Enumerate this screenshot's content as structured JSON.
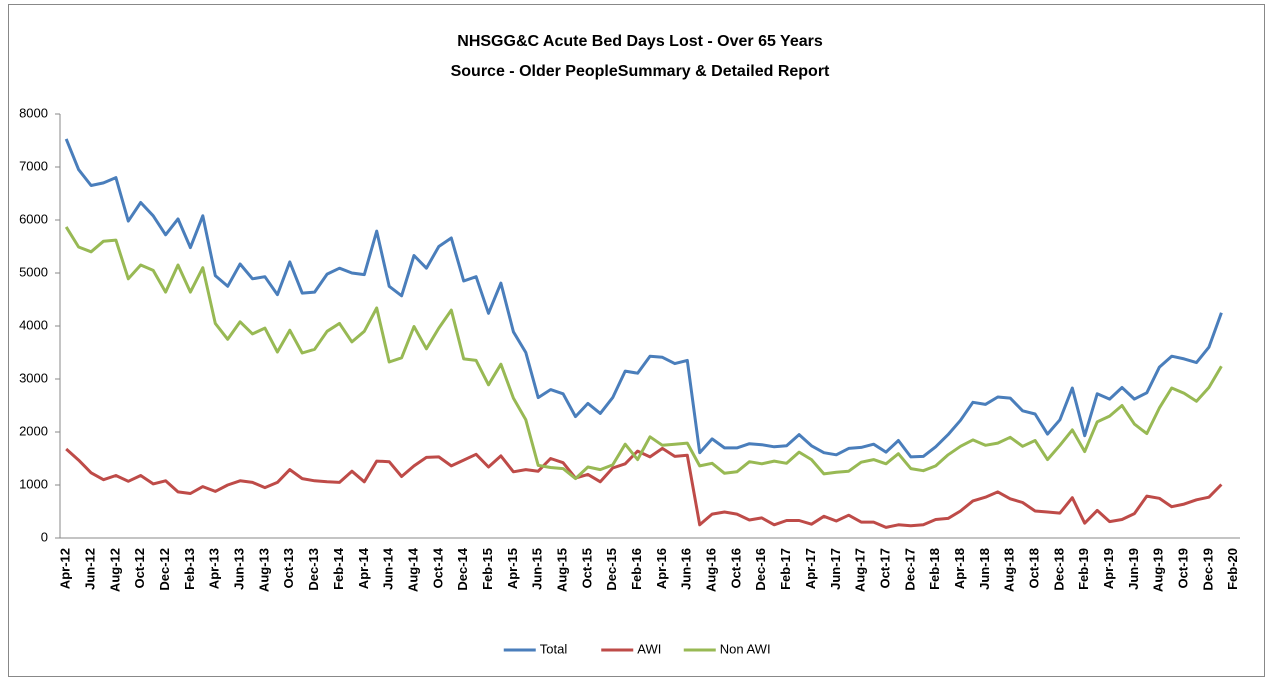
{
  "chart_data": {
    "type": "line",
    "title": "NHSGG&C Acute Bed Days Lost - Over 65 Years",
    "subtitle": "Source - Older PeopleSummary & Detailed Report",
    "categories": [
      "Apr-12",
      null,
      "Jun-12",
      null,
      "Aug-12",
      null,
      "Oct-12",
      null,
      "Dec-12",
      null,
      "Feb-13",
      null,
      "Apr-13",
      null,
      "Jun-13",
      null,
      "Aug-13",
      null,
      "Oct-13",
      null,
      "Dec-13",
      null,
      "Feb-14",
      null,
      "Apr-14",
      null,
      "Jun-14",
      null,
      "Aug-14",
      null,
      "Oct-14",
      null,
      "Dec-14",
      null,
      "Feb-15",
      null,
      "Apr-15",
      null,
      "Jun-15",
      null,
      "Aug-15",
      null,
      "Oct-15",
      null,
      "Dec-15",
      null,
      "Feb-16",
      null,
      "Apr-16",
      null,
      "Jun-16",
      null,
      "Aug-16",
      null,
      "Oct-16",
      null,
      "Dec-16",
      null,
      "Feb-17",
      null,
      "Apr-17",
      null,
      "Jun-17",
      null,
      "Aug-17",
      null,
      "Oct-17",
      null,
      "Dec-17",
      null,
      "Feb-18",
      null,
      "Apr-18",
      null,
      "Jun-18",
      null,
      "Aug-18",
      null,
      "Oct-18",
      null,
      "Dec-18",
      null,
      "Feb-19",
      null,
      "Apr-19",
      null,
      "Jun-19",
      null,
      "Aug-19",
      null,
      "Oct-19",
      null,
      "Dec-19",
      null,
      "Feb-20"
    ],
    "series": [
      {
        "name": "Total",
        "color": "#4a7ebb",
        "values": [
          7530,
          6950,
          6650,
          6700,
          6800,
          5980,
          6330,
          6080,
          5720,
          6020,
          5480,
          6080,
          4950,
          4750,
          5170,
          4890,
          4930,
          4590,
          5210,
          4620,
          4640,
          4980,
          5090,
          5000,
          4970,
          5790,
          4750,
          4570,
          5330,
          5090,
          5500,
          5660,
          4850,
          4930,
          4240,
          4810,
          3890,
          3500,
          2650,
          2800,
          2720,
          2290,
          2540,
          2350,
          2650,
          3150,
          3110,
          3430,
          3410,
          3290,
          3350,
          1610,
          1870,
          1700,
          1700,
          1780,
          1760,
          1720,
          1740,
          1950,
          1740,
          1610,
          1570,
          1690,
          1710,
          1770,
          1620,
          1840,
          1530,
          1540,
          1720,
          1950,
          2220,
          2560,
          2520,
          2660,
          2640,
          2400,
          2340,
          1960,
          2230,
          2830,
          1930,
          2720,
          2620,
          2840,
          2620,
          2740,
          3220,
          3430,
          3380,
          3310,
          3600,
          4250,
          null
        ]
      },
      {
        "name": "AWI",
        "color": "#be4b48",
        "values": [
          1680,
          1470,
          1230,
          1100,
          1180,
          1070,
          1180,
          1020,
          1080,
          870,
          840,
          970,
          880,
          1000,
          1080,
          1050,
          950,
          1050,
          1290,
          1120,
          1080,
          1060,
          1050,
          1260,
          1060,
          1450,
          1440,
          1160,
          1360,
          1520,
          1530,
          1360,
          1470,
          1580,
          1340,
          1550,
          1250,
          1290,
          1260,
          1500,
          1420,
          1130,
          1200,
          1060,
          1320,
          1400,
          1640,
          1530,
          1690,
          1540,
          1560,
          250,
          450,
          490,
          450,
          340,
          380,
          250,
          330,
          330,
          260,
          410,
          320,
          430,
          300,
          300,
          200,
          250,
          230,
          250,
          350,
          370,
          510,
          700,
          770,
          870,
          740,
          670,
          510,
          490,
          470,
          760,
          280,
          520,
          310,
          350,
          460,
          790,
          750,
          590,
          640,
          720,
          770,
          1010,
          null
        ]
      },
      {
        "name": "Non AWI",
        "color": "#98b954",
        "values": [
          5870,
          5490,
          5400,
          5600,
          5620,
          4890,
          5150,
          5050,
          4640,
          5150,
          4640,
          5100,
          4050,
          3750,
          4080,
          3850,
          3960,
          3510,
          3920,
          3490,
          3560,
          3900,
          4050,
          3700,
          3900,
          4340,
          3320,
          3400,
          3990,
          3570,
          3960,
          4300,
          3380,
          3350,
          2890,
          3280,
          2640,
          2230,
          1370,
          1330,
          1310,
          1120,
          1340,
          1290,
          1380,
          1770,
          1480,
          1910,
          1750,
          1770,
          1790,
          1360,
          1410,
          1220,
          1250,
          1440,
          1400,
          1450,
          1410,
          1620,
          1480,
          1210,
          1240,
          1260,
          1430,
          1480,
          1400,
          1590,
          1310,
          1270,
          1360,
          1570,
          1730,
          1850,
          1750,
          1790,
          1900,
          1730,
          1840,
          1480,
          1750,
          2040,
          1630,
          2190,
          2300,
          2500,
          2150,
          1970,
          2450,
          2830,
          2730,
          2580,
          2840,
          3240,
          null
        ]
      }
    ],
    "ylim": [
      0,
      8000
    ],
    "yticks": [
      0,
      1000,
      2000,
      3000,
      4000,
      5000,
      6000,
      7000,
      8000
    ],
    "grid": false,
    "legend": "bottom"
  }
}
